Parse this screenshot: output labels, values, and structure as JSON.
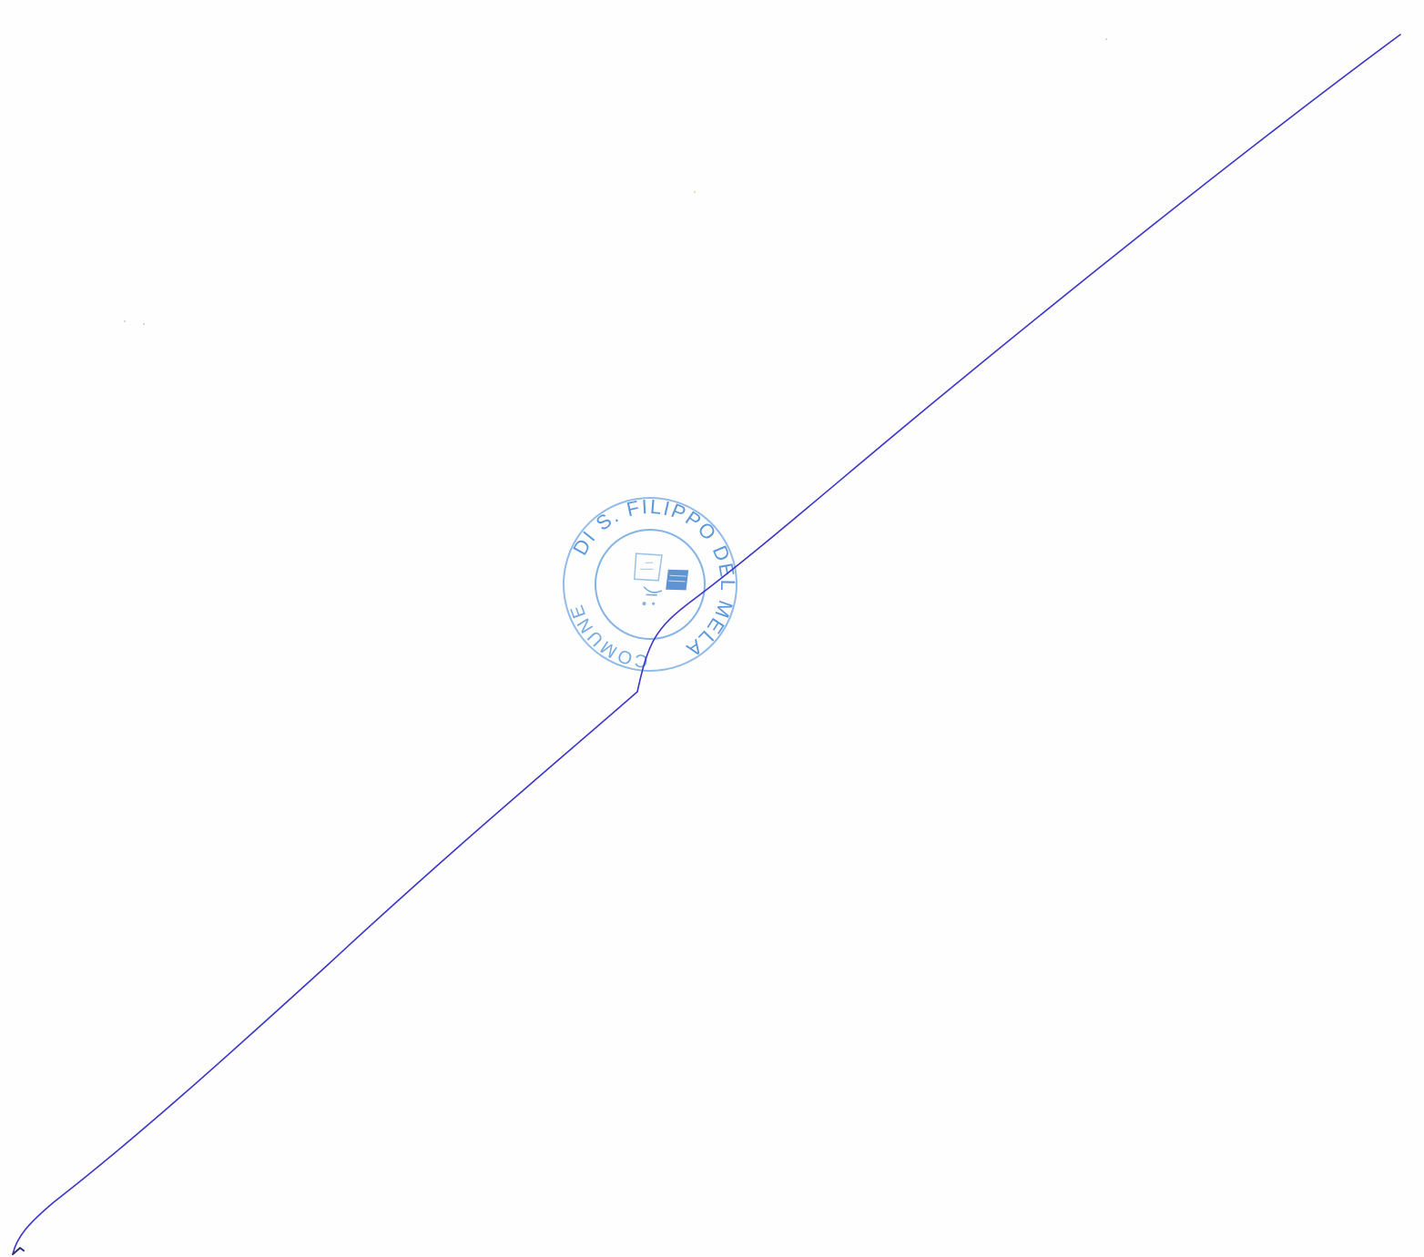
{
  "document": {
    "kind": "blank page cancelled with a diagonal pen stroke",
    "stamp": {
      "text_top": "DI S. FILIPPO DEL MELA",
      "text_bottom": "COMUNE",
      "ink_color": "#3f86d6"
    },
    "cancel_stroke": {
      "ink_color": "#3b35c8"
    }
  }
}
